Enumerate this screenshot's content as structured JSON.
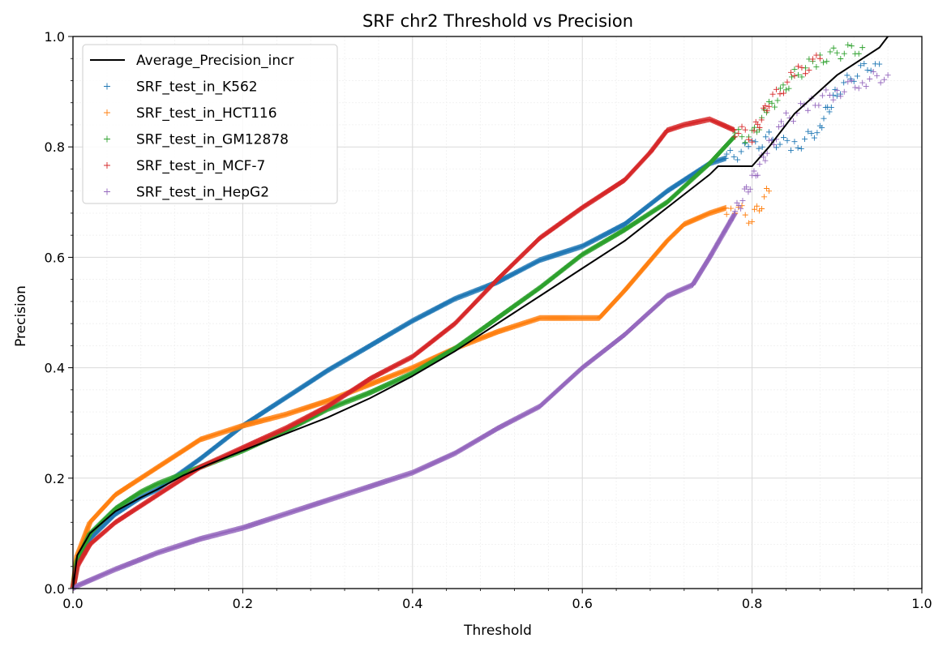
{
  "chart_data": {
    "type": "scatter",
    "title": "SRF chr2 Threshold vs Precision",
    "xlabel": "Threshold",
    "ylabel": "Precision",
    "xlim": [
      0.0,
      1.0
    ],
    "ylim": [
      0.0,
      1.0
    ],
    "xticks": [
      "0.0",
      "0.2",
      "0.4",
      "0.6",
      "0.8",
      "1.0"
    ],
    "yticks": [
      "0.0",
      "0.2",
      "0.4",
      "0.6",
      "0.8",
      "1.0"
    ],
    "grid": true,
    "legend_position": "upper-left",
    "line_series": {
      "name": "Average_Precision_incr",
      "color": "#000000",
      "x": [
        0.0,
        0.005,
        0.02,
        0.05,
        0.08,
        0.1,
        0.13,
        0.16,
        0.2,
        0.25,
        0.3,
        0.35,
        0.4,
        0.45,
        0.5,
        0.55,
        0.6,
        0.65,
        0.7,
        0.75,
        0.76,
        0.8,
        0.82,
        0.85,
        0.9,
        0.95,
        0.96
      ],
      "y": [
        0.0,
        0.06,
        0.1,
        0.14,
        0.165,
        0.18,
        0.205,
        0.225,
        0.25,
        0.28,
        0.31,
        0.345,
        0.385,
        0.43,
        0.48,
        0.53,
        0.58,
        0.63,
        0.69,
        0.75,
        0.765,
        0.765,
        0.8,
        0.86,
        0.93,
        0.98,
        1.0
      ]
    },
    "series": [
      {
        "name": "SRF_test_in_K562",
        "color": "#1f77b4",
        "x": [
          0.0,
          0.005,
          0.02,
          0.05,
          0.08,
          0.1,
          0.15,
          0.2,
          0.25,
          0.3,
          0.35,
          0.4,
          0.45,
          0.5,
          0.55,
          0.6,
          0.65,
          0.7,
          0.75,
          0.77,
          0.8,
          0.82,
          0.85,
          0.87,
          0.88,
          0.9,
          0.92,
          0.94,
          0.95
        ],
        "y": [
          0.0,
          0.05,
          0.09,
          0.135,
          0.165,
          0.18,
          0.235,
          0.295,
          0.345,
          0.395,
          0.44,
          0.485,
          0.525,
          0.555,
          0.595,
          0.62,
          0.66,
          0.72,
          0.77,
          0.78,
          0.8,
          0.815,
          0.8,
          0.82,
          0.84,
          0.9,
          0.93,
          0.95,
          0.95
        ]
      },
      {
        "name": "SRF_test_in_HCT116",
        "color": "#ff7f0e",
        "x": [
          0.0,
          0.005,
          0.02,
          0.05,
          0.08,
          0.1,
          0.15,
          0.2,
          0.25,
          0.3,
          0.35,
          0.4,
          0.45,
          0.5,
          0.55,
          0.6,
          0.62,
          0.65,
          0.7,
          0.72,
          0.75,
          0.77,
          0.78,
          0.8,
          0.82
        ],
        "y": [
          0.0,
          0.06,
          0.12,
          0.17,
          0.2,
          0.22,
          0.27,
          0.295,
          0.315,
          0.34,
          0.37,
          0.4,
          0.435,
          0.465,
          0.49,
          0.49,
          0.49,
          0.54,
          0.63,
          0.66,
          0.68,
          0.69,
          0.69,
          0.67,
          0.72
        ]
      },
      {
        "name": "SRF_test_in_GM12878",
        "color": "#2ca02c",
        "x": [
          0.0,
          0.005,
          0.02,
          0.05,
          0.08,
          0.1,
          0.15,
          0.2,
          0.25,
          0.3,
          0.35,
          0.4,
          0.45,
          0.5,
          0.55,
          0.6,
          0.65,
          0.7,
          0.75,
          0.78,
          0.8,
          0.82,
          0.85,
          0.88,
          0.9,
          0.93
        ],
        "y": [
          0.0,
          0.05,
          0.1,
          0.145,
          0.175,
          0.19,
          0.22,
          0.25,
          0.285,
          0.325,
          0.355,
          0.39,
          0.435,
          0.49,
          0.545,
          0.605,
          0.65,
          0.7,
          0.77,
          0.82,
          0.82,
          0.87,
          0.93,
          0.96,
          0.97,
          0.98
        ]
      },
      {
        "name": "SRF_test_in_MCF-7",
        "color": "#d62728",
        "x": [
          0.0,
          0.005,
          0.02,
          0.05,
          0.08,
          0.1,
          0.15,
          0.2,
          0.25,
          0.3,
          0.35,
          0.4,
          0.45,
          0.5,
          0.55,
          0.6,
          0.65,
          0.68,
          0.7,
          0.72,
          0.75,
          0.78,
          0.8,
          0.82,
          0.85,
          0.88
        ],
        "y": [
          0.0,
          0.04,
          0.08,
          0.12,
          0.15,
          0.17,
          0.22,
          0.255,
          0.29,
          0.33,
          0.38,
          0.42,
          0.48,
          0.56,
          0.635,
          0.69,
          0.74,
          0.79,
          0.83,
          0.84,
          0.85,
          0.83,
          0.82,
          0.88,
          0.93,
          0.96
        ]
      },
      {
        "name": "SRF_test_in_HepG2",
        "color": "#9467bd",
        "x": [
          0.0,
          0.005,
          0.02,
          0.05,
          0.1,
          0.15,
          0.2,
          0.25,
          0.3,
          0.35,
          0.4,
          0.45,
          0.5,
          0.55,
          0.6,
          0.65,
          0.7,
          0.73,
          0.75,
          0.78,
          0.8,
          0.82,
          0.84,
          0.87,
          0.9,
          0.93,
          0.96
        ],
        "y": [
          0.0,
          0.005,
          0.015,
          0.035,
          0.065,
          0.09,
          0.11,
          0.135,
          0.16,
          0.185,
          0.21,
          0.245,
          0.29,
          0.33,
          0.4,
          0.46,
          0.53,
          0.55,
          0.6,
          0.68,
          0.74,
          0.8,
          0.85,
          0.88,
          0.9,
          0.92,
          0.93
        ]
      }
    ]
  }
}
